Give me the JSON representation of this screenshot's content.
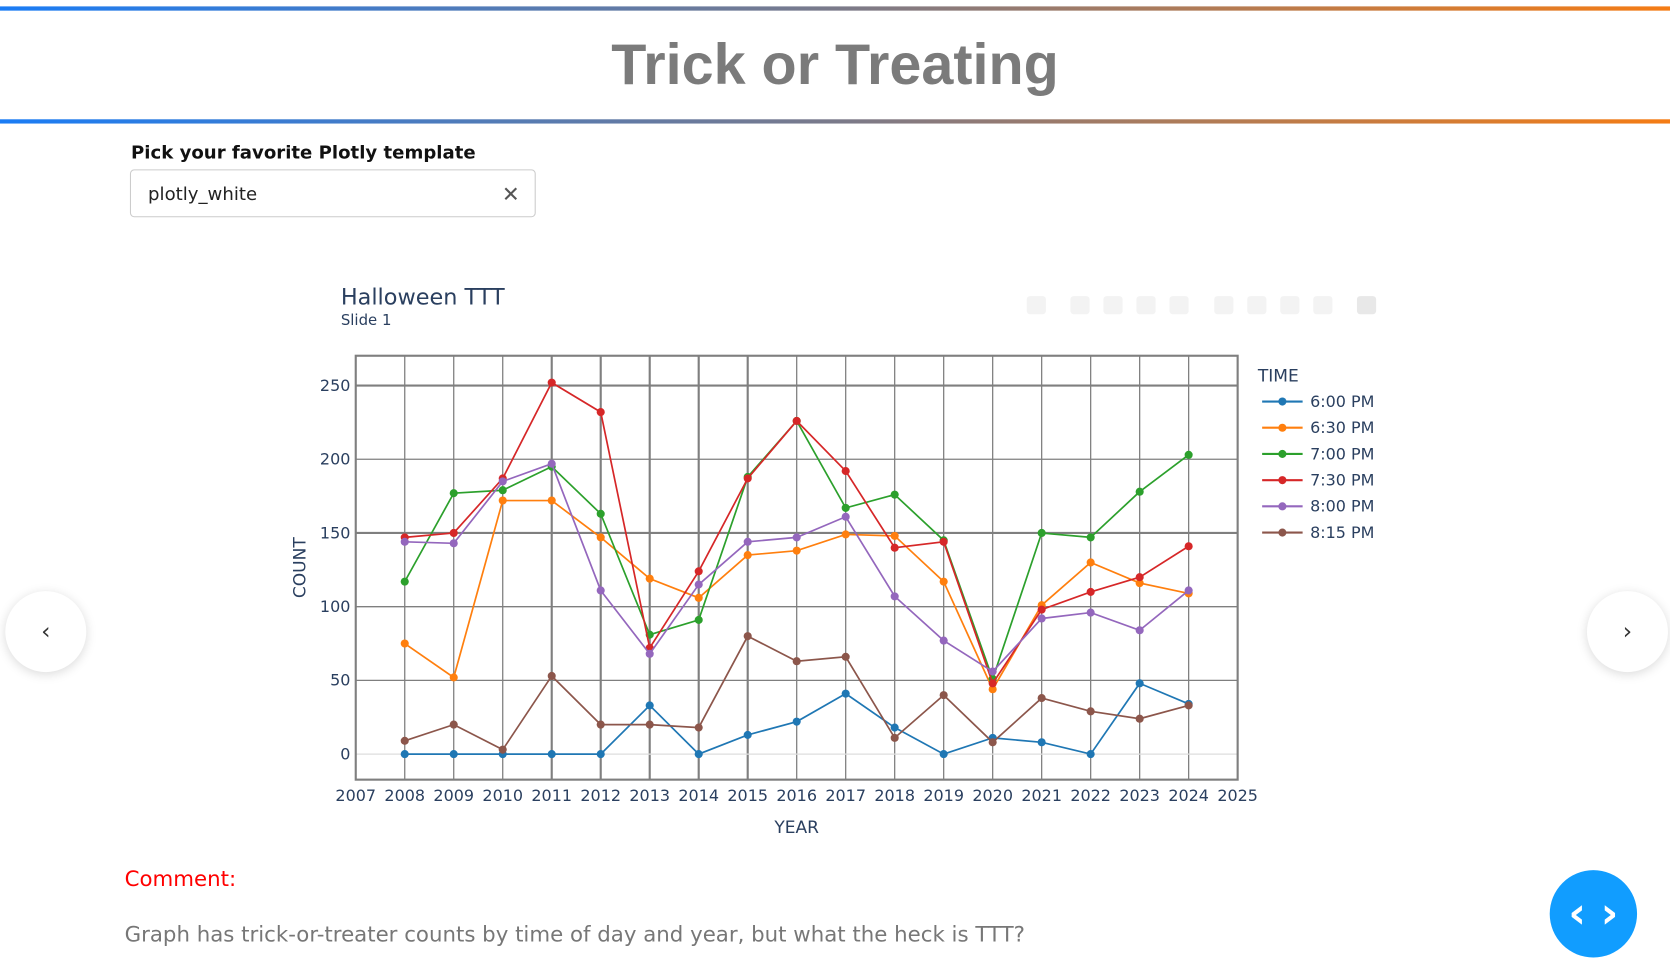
{
  "header": {
    "title": "Trick or Treating"
  },
  "controls": {
    "label": "Pick your favorite Plotly template",
    "value": "plotly_white",
    "clear_icon": "close-icon"
  },
  "nav": {
    "prev_icon": "chevron-left-icon",
    "next_icon": "chevron-right-icon",
    "code_icon": "code-icon"
  },
  "comment": {
    "label": "Comment:",
    "text": "Graph has trick-or-treater counts by time of day and year, but what the heck is TTT?"
  },
  "chart_data": {
    "type": "line",
    "title": "Halloween TTT",
    "subtitle": "Slide 1",
    "xlabel": "YEAR",
    "ylabel": "COUNT",
    "legend_title": "TIME",
    "legend_placement": "right",
    "xlim": [
      2007,
      2025
    ],
    "ylim": [
      -18,
      270
    ],
    "xticks": [
      2007,
      2008,
      2009,
      2010,
      2011,
      2012,
      2013,
      2014,
      2015,
      2016,
      2017,
      2018,
      2019,
      2020,
      2021,
      2022,
      2023,
      2024,
      2025
    ],
    "yticks": [
      0,
      50,
      100,
      150,
      200,
      250
    ],
    "grid": true,
    "x": [
      2008,
      2009,
      2010,
      2011,
      2012,
      2013,
      2014,
      2015,
      2016,
      2017,
      2018,
      2019,
      2020,
      2021,
      2022,
      2023,
      2024
    ],
    "series": [
      {
        "name": "6:00 PM",
        "color": "#1f77b4",
        "values": [
          0,
          0,
          0,
          0,
          0,
          33,
          0,
          13,
          22,
          41,
          18,
          0,
          11,
          8,
          0,
          48,
          34
        ]
      },
      {
        "name": "6:30 PM",
        "color": "#ff7f0e",
        "values": [
          75,
          52,
          172,
          172,
          147,
          119,
          106,
          135,
          138,
          149,
          148,
          117,
          44,
          101,
          130,
          116,
          109
        ]
      },
      {
        "name": "7:00 PM",
        "color": "#2ca02c",
        "values": [
          117,
          177,
          179,
          195,
          163,
          81,
          91,
          188,
          226,
          167,
          176,
          145,
          51,
          150,
          147,
          178,
          203
        ]
      },
      {
        "name": "7:30 PM",
        "color": "#d62728",
        "values": [
          147,
          150,
          187,
          252,
          232,
          72,
          124,
          187,
          226,
          192,
          140,
          144,
          48,
          98,
          110,
          120,
          141
        ]
      },
      {
        "name": "8:00 PM",
        "color": "#9467bd",
        "values": [
          144,
          143,
          185,
          197,
          111,
          68,
          115,
          144,
          147,
          161,
          107,
          77,
          56,
          92,
          96,
          84,
          111
        ]
      },
      {
        "name": "8:15 PM",
        "color": "#8c564b",
        "values": [
          9,
          20,
          3,
          53,
          20,
          20,
          18,
          80,
          63,
          66,
          11,
          40,
          8,
          38,
          29,
          24,
          33
        ]
      }
    ],
    "modebar_icons": [
      "camera-icon",
      "zoom-icon",
      "pan-icon",
      "box-select-icon",
      "lasso-icon",
      "zoom-in-icon",
      "zoom-out-icon",
      "autoscale-icon",
      "home-icon",
      "plotly-logo-icon"
    ]
  }
}
